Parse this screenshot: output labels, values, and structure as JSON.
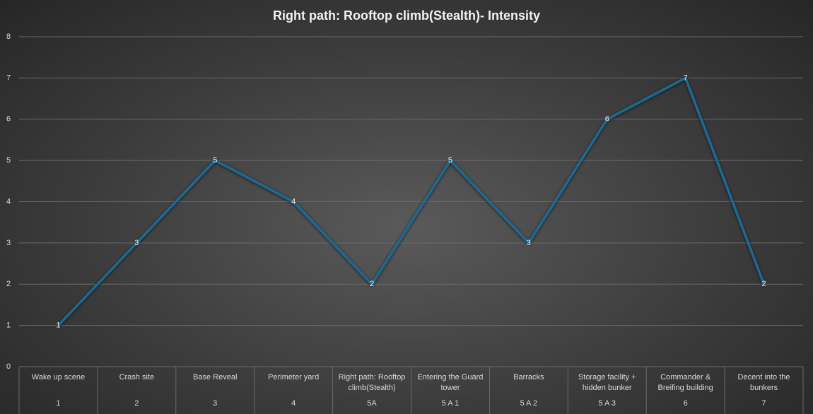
{
  "chart_data": {
    "type": "line",
    "title": "Right path: Rooftop  climb(Stealth)- Intensity",
    "categories": [
      "Wake up scene",
      "Crash site",
      "Base Reveal",
      "Perimeter yard",
      "Right path: Rooftop climb(Stealth)",
      "Entering the Guard tower",
      "Barracks",
      "Storage facility + hidden bunker",
      "Commander & Breifing building",
      "Decent into the bunkers"
    ],
    "category_codes": [
      "1",
      "2",
      "3",
      "4",
      "5A",
      "5 A 1",
      "5 A 2",
      "5 A 3",
      "6",
      "7"
    ],
    "values": [
      1,
      3,
      5,
      4,
      2,
      5,
      3,
      6,
      7,
      2
    ],
    "color": "#1d6a93",
    "ylim": [
      0,
      8
    ],
    "yticks": [
      0,
      1,
      2,
      3,
      4,
      5,
      6,
      7,
      8
    ],
    "grid": true
  }
}
